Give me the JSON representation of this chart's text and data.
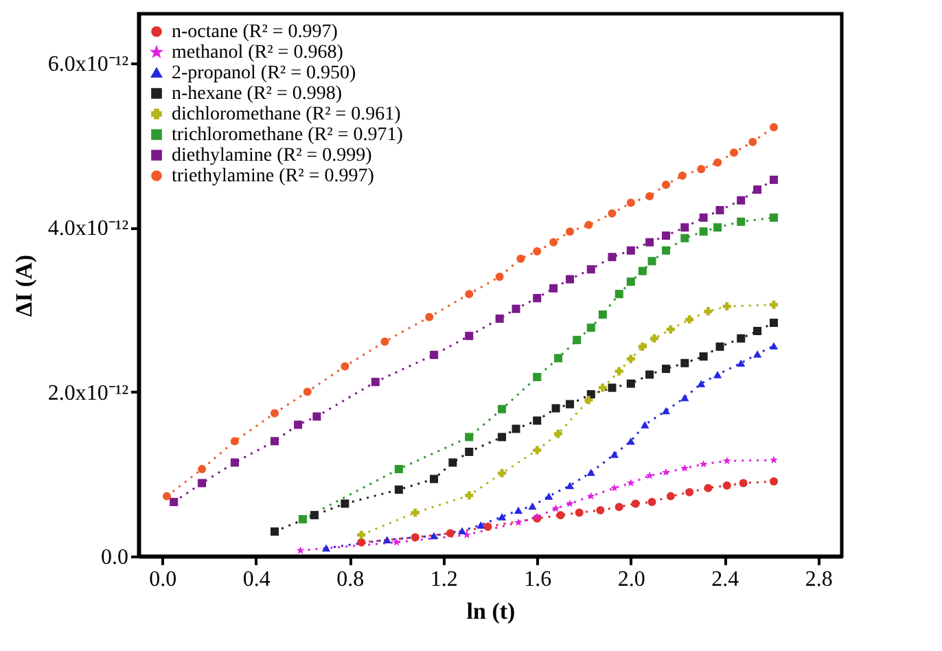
{
  "chart_data": {
    "type": "line",
    "xlabel": "ln (t)",
    "ylabel": "ΔI (A)",
    "xlim": [
      -0.1,
      2.9
    ],
    "xticks": [
      {
        "value": 0,
        "label": "0.0"
      },
      0.4,
      0.8,
      1.2,
      1.6,
      {
        "value": 2,
        "label": "2.0"
      },
      2.4,
      2.8
    ],
    "ylim": [
      0,
      6.6e-12
    ],
    "yticks": [
      {
        "value": 0,
        "label": "0.0"
      },
      {
        "value": 2e-12,
        "label": "2.0x10⁻¹²"
      },
      {
        "value": 4e-12,
        "label": "4.0x10⁻¹²"
      },
      {
        "value": 6e-12,
        "label": "6.0x10⁻¹²"
      }
    ],
    "grid": false,
    "legend": "top left",
    "line_style": "dotted",
    "series": [
      {
        "name": "n-octane (R² = 0.997)",
        "color": "#e03030",
        "marker": "circle",
        "x": [
          0.85,
          1.08,
          1.23,
          1.39,
          1.6,
          1.7,
          1.78,
          1.87,
          1.95,
          2.02,
          2.09,
          2.17,
          2.25,
          2.33,
          2.41,
          2.48,
          2.61
        ],
        "values": [
          1.7e-13,
          2.3e-13,
          2.8e-13,
          3.6e-13,
          4.6e-13,
          5e-13,
          5.3e-13,
          5.6e-13,
          6e-13,
          6.4e-13,
          6.6e-13,
          7.3e-13,
          7.8e-13,
          8.3e-13,
          8.6e-13,
          8.9e-13,
          9.1e-13
        ]
      },
      {
        "name": "methanol (R² = 0.968)",
        "color": "#e020e0",
        "marker": "star",
        "x": [
          0.59,
          1.0,
          1.3,
          1.52,
          1.6,
          1.68,
          1.74,
          1.83,
          1.93,
          2.0,
          2.08,
          2.15,
          2.23,
          2.31,
          2.41,
          2.61
        ],
        "values": [
          7e-14,
          1.7e-13,
          2.6e-13,
          4.1e-13,
          4.8e-13,
          5.8e-13,
          6.4e-13,
          7.3e-13,
          8.3e-13,
          8.9e-13,
          9.8e-13,
          1.02e-12,
          1.07e-12,
          1.12e-12,
          1.16e-12,
          1.17e-12
        ]
      },
      {
        "name": "2-propanol (R² = 0.950)",
        "color": "#2828e0",
        "marker": "triangle",
        "x": [
          0.7,
          0.96,
          1.16,
          1.28,
          1.36,
          1.45,
          1.52,
          1.58,
          1.65,
          1.74,
          1.83,
          1.93,
          2.0,
          2.06,
          2.15,
          2.23,
          2.3,
          2.37,
          2.47,
          2.54,
          2.61
        ],
        "values": [
          1e-13,
          2e-13,
          2.5e-13,
          3.1e-13,
          3.8e-13,
          4.8e-13,
          5.6e-13,
          6.1e-13,
          7.3e-13,
          8.6e-13,
          1.02e-12,
          1.24e-12,
          1.4e-12,
          1.6e-12,
          1.77e-12,
          1.93e-12,
          2.1e-12,
          2.21e-12,
          2.35e-12,
          2.46e-12,
          2.56e-12
        ]
      },
      {
        "name": "n-hexane (R² = 0.998)",
        "color": "#202020",
        "marker": "square",
        "x": [
          0.48,
          0.65,
          0.78,
          1.01,
          1.16,
          1.24,
          1.31,
          1.45,
          1.51,
          1.6,
          1.68,
          1.74,
          1.83,
          1.92,
          2.0,
          2.08,
          2.15,
          2.23,
          2.31,
          2.38,
          2.47,
          2.54,
          2.61
        ],
        "values": [
          3e-13,
          5e-13,
          6.4e-13,
          8.1e-13,
          9.4e-13,
          1.14e-12,
          1.27e-12,
          1.45e-12,
          1.55e-12,
          1.65e-12,
          1.8e-12,
          1.85e-12,
          1.97e-12,
          2.05e-12,
          2.1e-12,
          2.21e-12,
          2.28e-12,
          2.35e-12,
          2.43e-12,
          2.55e-12,
          2.65e-12,
          2.74e-12,
          2.84e-12
        ]
      },
      {
        "name": "dichloromethane (R² = 0.961)",
        "color": "#b5b51a",
        "marker": "cross",
        "x": [
          0.85,
          1.08,
          1.31,
          1.45,
          1.6,
          1.69,
          1.82,
          1.88,
          1.95,
          2.0,
          2.05,
          2.1,
          2.17,
          2.25,
          2.33,
          2.41,
          2.61
        ],
        "values": [
          2.6e-13,
          5.3e-13,
          7.4e-13,
          1.01e-12,
          1.29e-12,
          1.49e-12,
          1.9e-12,
          2.05e-12,
          2.25e-12,
          2.4e-12,
          2.55e-12,
          2.65e-12,
          2.76e-12,
          2.88e-12,
          2.98e-12,
          3.04e-12,
          3.06e-12
        ]
      },
      {
        "name": "trichloromethane (R² = 0.971)",
        "color": "#2e9a2e",
        "marker": "square",
        "x": [
          0.6,
          1.01,
          1.31,
          1.45,
          1.6,
          1.69,
          1.77,
          1.83,
          1.88,
          1.95,
          2.0,
          2.05,
          2.09,
          2.15,
          2.23,
          2.31,
          2.37,
          2.47,
          2.61
        ],
        "values": [
          4.5e-13,
          1.06e-12,
          1.45e-12,
          1.79e-12,
          2.18e-12,
          2.41e-12,
          2.63e-12,
          2.78e-12,
          2.94e-12,
          3.19e-12,
          3.34e-12,
          3.47e-12,
          3.59e-12,
          3.72e-12,
          3.87e-12,
          3.95e-12,
          4e-12,
          4.07e-12,
          4.12e-12
        ]
      },
      {
        "name": "diethylamine (R² = 0.999)",
        "color": "#7b1a8a",
        "marker": "square",
        "x": [
          0.05,
          0.17,
          0.31,
          0.48,
          0.58,
          0.66,
          0.91,
          1.16,
          1.31,
          1.44,
          1.51,
          1.6,
          1.67,
          1.74,
          1.83,
          1.92,
          2.0,
          2.08,
          2.15,
          2.23,
          2.31,
          2.38,
          2.47,
          2.54,
          2.61
        ],
        "values": [
          6.6e-13,
          8.9e-13,
          1.14e-12,
          1.4e-12,
          1.6e-12,
          1.7e-12,
          2.12e-12,
          2.45e-12,
          2.68e-12,
          2.89e-12,
          3.01e-12,
          3.14e-12,
          3.26e-12,
          3.37e-12,
          3.49e-12,
          3.64e-12,
          3.72e-12,
          3.82e-12,
          3.9e-12,
          4e-12,
          4.12e-12,
          4.21e-12,
          4.33e-12,
          4.46e-12,
          4.58e-12
        ]
      },
      {
        "name": "triethylamine (R² = 0.997)",
        "color": "#f05a28",
        "marker": "circle",
        "x": [
          0.02,
          0.17,
          0.31,
          0.48,
          0.62,
          0.78,
          0.95,
          1.14,
          1.31,
          1.44,
          1.53,
          1.6,
          1.67,
          1.74,
          1.82,
          1.92,
          2.0,
          2.08,
          2.15,
          2.22,
          2.3,
          2.37,
          2.44,
          2.52,
          2.61
        ],
        "values": [
          7.3e-13,
          1.06e-12,
          1.4e-12,
          1.74e-12,
          2e-12,
          2.31e-12,
          2.61e-12,
          2.91e-12,
          3.19e-12,
          3.4e-12,
          3.62e-12,
          3.71e-12,
          3.82e-12,
          3.95e-12,
          4.03e-12,
          4.17e-12,
          4.3e-12,
          4.38e-12,
          4.52e-12,
          4.63e-12,
          4.71e-12,
          4.79e-12,
          4.91e-12,
          5.04e-12,
          5.22e-12
        ]
      }
    ]
  }
}
